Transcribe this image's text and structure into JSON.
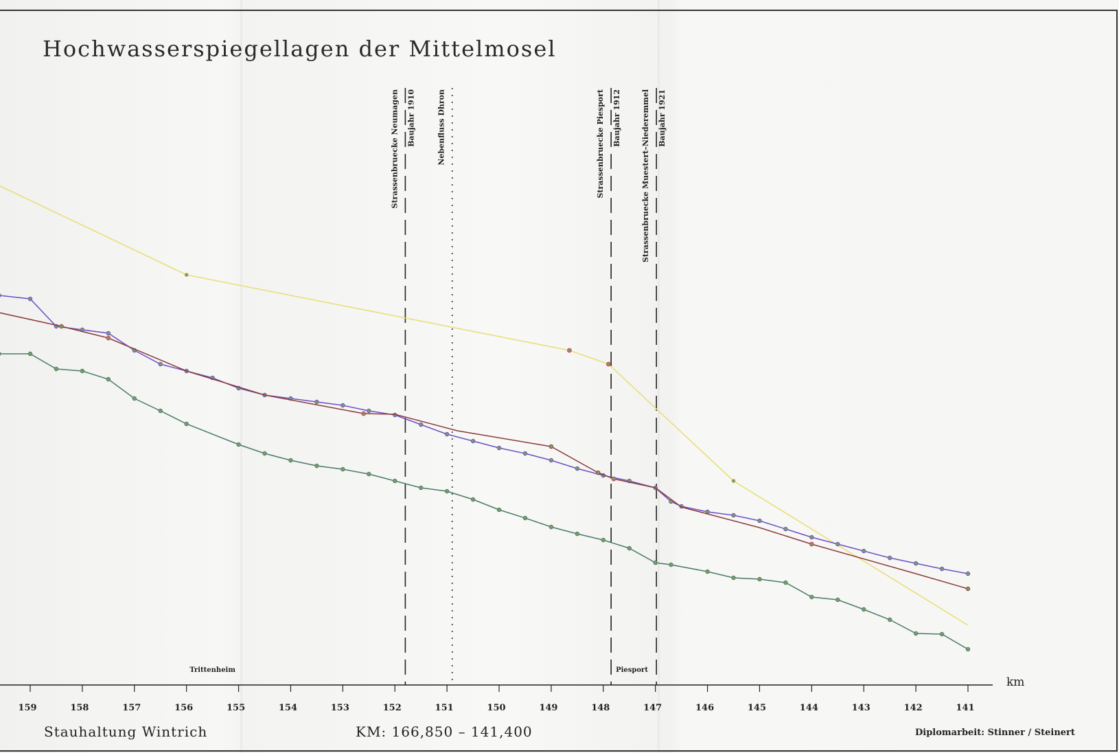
{
  "title": "Hochwasserspiegellagen der Mittelmosel",
  "footer": {
    "left": "Stauhaltung Wintrich",
    "center": "KM: 166,850 – 141,400",
    "right": "Diplomarbeit: Stinner / Steinert"
  },
  "chart_data": {
    "type": "line",
    "title": "Hochwasserspiegellagen der Mittelmosel",
    "xlabel": "km",
    "ylabel": "",
    "x_reversed": true,
    "xlim": [
      140.4,
      159.6
    ],
    "ylim": [
      0,
      100
    ],
    "y_ticks_shown": false,
    "x_ticks": [
      159,
      158,
      157,
      156,
      155,
      154,
      153,
      152,
      151,
      150,
      149,
      148,
      147,
      146,
      145,
      144,
      143,
      142,
      141
    ],
    "grid": false,
    "colors": {
      "yellow": "#e8df7a",
      "purple": "#6a4fc8",
      "brown": "#8b3a3a",
      "green": "#4a7a6a",
      "marker": "#7a9a6a",
      "marker_red": "#d44a6a"
    },
    "series": [
      {
        "color": "yellow",
        "points": [
          [
            159.6,
            81
          ],
          [
            156.0,
            68
          ],
          [
            148.65,
            57
          ],
          [
            147.9,
            55
          ],
          [
            145.5,
            38
          ],
          [
            141.0,
            17
          ]
        ],
        "markers": [
          [
            156.0,
            68
          ],
          [
            148.65,
            57
          ],
          [
            147.9,
            55
          ],
          [
            145.5,
            38
          ]
        ]
      },
      {
        "color": "purple",
        "points": [
          [
            159.6,
            65
          ],
          [
            159.0,
            64.5
          ],
          [
            158.5,
            60.5
          ],
          [
            158.0,
            60
          ],
          [
            157.5,
            59.5
          ],
          [
            157.0,
            57
          ],
          [
            156.5,
            55
          ],
          [
            156.0,
            54
          ],
          [
            155.5,
            53
          ],
          [
            155.0,
            51.5
          ],
          [
            154.5,
            50.5
          ],
          [
            154.0,
            50
          ],
          [
            153.5,
            49.5
          ],
          [
            153.0,
            49
          ],
          [
            152.5,
            48.2
          ],
          [
            152.0,
            47.6
          ],
          [
            151.5,
            46.2
          ],
          [
            151.0,
            44.8
          ],
          [
            150.5,
            43.8
          ],
          [
            150.0,
            42.8
          ],
          [
            149.5,
            42
          ],
          [
            149.0,
            41
          ],
          [
            148.5,
            39.8
          ],
          [
            148.0,
            38.8
          ],
          [
            147.5,
            38
          ],
          [
            147.0,
            37
          ],
          [
            146.7,
            35
          ],
          [
            146.5,
            34.3
          ],
          [
            146.0,
            33.5
          ],
          [
            145.5,
            33
          ],
          [
            145.0,
            32.2
          ],
          [
            144.5,
            31
          ],
          [
            144.0,
            29.8
          ],
          [
            143.5,
            28.8
          ],
          [
            143.0,
            27.8
          ],
          [
            142.5,
            26.8
          ],
          [
            142.0,
            26
          ],
          [
            141.5,
            25.2
          ],
          [
            141.0,
            24.5
          ]
        ],
        "markers": [
          [
            159.6,
            65
          ],
          [
            159.0,
            64.5
          ],
          [
            158.5,
            60.5
          ],
          [
            158.0,
            60
          ],
          [
            157.5,
            59.5
          ],
          [
            157.0,
            57
          ],
          [
            156.5,
            55
          ],
          [
            156.0,
            54
          ],
          [
            155.5,
            53
          ],
          [
            155.0,
            51.5
          ],
          [
            154.5,
            50.5
          ],
          [
            154.0,
            50
          ],
          [
            153.5,
            49.5
          ],
          [
            153.0,
            49
          ],
          [
            152.5,
            48.2
          ],
          [
            152.0,
            47.6
          ],
          [
            151.5,
            46.2
          ],
          [
            151.0,
            44.8
          ],
          [
            150.5,
            43.8
          ],
          [
            150.0,
            42.8
          ],
          [
            149.5,
            42
          ],
          [
            149.0,
            41
          ],
          [
            148.5,
            39.8
          ],
          [
            148.0,
            38.8
          ],
          [
            147.5,
            38
          ],
          [
            147.0,
            37
          ],
          [
            146.7,
            35
          ],
          [
            146.5,
            34.3
          ],
          [
            146.0,
            33.5
          ],
          [
            145.5,
            33
          ],
          [
            145.0,
            32.2
          ],
          [
            144.5,
            31
          ],
          [
            144.0,
            29.8
          ],
          [
            143.5,
            28.8
          ],
          [
            143.0,
            27.8
          ],
          [
            142.5,
            26.8
          ],
          [
            142.0,
            26
          ],
          [
            141.5,
            25.2
          ],
          [
            141.0,
            24.5
          ]
        ]
      },
      {
        "color": "brown",
        "points": [
          [
            159.6,
            62.5
          ],
          [
            158.4,
            60.5
          ],
          [
            157.5,
            58.8
          ],
          [
            156.0,
            54
          ],
          [
            154.5,
            50.5
          ],
          [
            152.6,
            47.8
          ],
          [
            152.0,
            47.7
          ],
          [
            150.8,
            45.3
          ],
          [
            149.0,
            43
          ],
          [
            148.1,
            39.2
          ],
          [
            147.8,
            38.3
          ],
          [
            147.0,
            37
          ],
          [
            146.5,
            34.2
          ],
          [
            145.0,
            31.2
          ],
          [
            144.0,
            28.8
          ],
          [
            142.0,
            24.5
          ],
          [
            141.0,
            22.3
          ]
        ],
        "markers": [
          [
            158.4,
            60.5
          ],
          [
            157.5,
            58.8
          ],
          [
            152.6,
            47.8
          ],
          [
            149.0,
            43
          ],
          [
            148.1,
            39.2
          ],
          [
            147.8,
            38.3
          ],
          [
            144.0,
            28.8
          ],
          [
            141.0,
            22.3
          ]
        ]
      },
      {
        "color": "green",
        "points": [
          [
            159.6,
            56.5
          ],
          [
            159.0,
            56.5
          ],
          [
            158.5,
            54.3
          ],
          [
            158.0,
            54
          ],
          [
            157.5,
            52.8
          ],
          [
            157.0,
            50
          ],
          [
            156.5,
            48.2
          ],
          [
            156.0,
            46.3
          ],
          [
            155.0,
            43.3
          ],
          [
            154.5,
            42
          ],
          [
            154.0,
            41
          ],
          [
            153.5,
            40.2
          ],
          [
            153.0,
            39.7
          ],
          [
            152.5,
            39
          ],
          [
            152.0,
            38
          ],
          [
            151.5,
            37
          ],
          [
            151.0,
            36.5
          ],
          [
            150.5,
            35.3
          ],
          [
            150.0,
            33.8
          ],
          [
            149.5,
            32.6
          ],
          [
            149.0,
            31.3
          ],
          [
            148.5,
            30.3
          ],
          [
            148.0,
            29.4
          ],
          [
            147.5,
            28.2
          ],
          [
            147.0,
            26.1
          ],
          [
            146.7,
            25.8
          ],
          [
            146.0,
            24.8
          ],
          [
            145.5,
            23.9
          ],
          [
            145.0,
            23.7
          ],
          [
            144.5,
            23.2
          ],
          [
            144.0,
            21.1
          ],
          [
            143.5,
            20.7
          ],
          [
            143.0,
            19.3
          ],
          [
            142.5,
            17.8
          ],
          [
            142.0,
            15.8
          ],
          [
            141.5,
            15.7
          ],
          [
            141.0,
            13.5
          ]
        ],
        "markers": [
          [
            159.6,
            56.5
          ],
          [
            159.0,
            56.5
          ],
          [
            158.5,
            54.3
          ],
          [
            158.0,
            54
          ],
          [
            157.5,
            52.8
          ],
          [
            157.0,
            50
          ],
          [
            156.5,
            48.2
          ],
          [
            156.0,
            46.3
          ],
          [
            155.0,
            43.3
          ],
          [
            154.5,
            42
          ],
          [
            154.0,
            41
          ],
          [
            153.5,
            40.2
          ],
          [
            153.0,
            39.7
          ],
          [
            152.5,
            39
          ],
          [
            152.0,
            38
          ],
          [
            151.5,
            37
          ],
          [
            151.0,
            36.5
          ],
          [
            150.5,
            35.3
          ],
          [
            150.0,
            33.8
          ],
          [
            149.5,
            32.6
          ],
          [
            149.0,
            31.3
          ],
          [
            148.5,
            30.3
          ],
          [
            148.0,
            29.4
          ],
          [
            147.5,
            28.2
          ],
          [
            147.0,
            26.1
          ],
          [
            146.7,
            25.8
          ],
          [
            146.0,
            24.8
          ],
          [
            145.5,
            23.9
          ],
          [
            145.0,
            23.7
          ],
          [
            144.5,
            23.2
          ],
          [
            144.0,
            21.1
          ],
          [
            143.5,
            20.7
          ],
          [
            143.0,
            19.3
          ],
          [
            142.5,
            17.8
          ],
          [
            142.0,
            15.8
          ],
          [
            141.5,
            15.7
          ],
          [
            141.0,
            13.5
          ]
        ]
      }
    ],
    "red_markers": [
      [
        157.5,
        58.8
      ],
      [
        152.6,
        47.8
      ],
      [
        148.65,
        57
      ],
      [
        147.9,
        55
      ],
      [
        147.8,
        38.3
      ],
      [
        144.0,
        28.8
      ]
    ],
    "structures": [
      {
        "x": 151.8,
        "style": "dashed",
        "labels": [
          "Strassenbruecke  Neumagen",
          "Baujahr 1910"
        ]
      },
      {
        "x": 150.9,
        "style": "dotted",
        "labels": [
          "Nebenfluss Dhron"
        ]
      },
      {
        "x": 147.85,
        "style": "dashed",
        "labels": [
          "Strassenbruecke Piesport",
          "Baujahr 1912"
        ]
      },
      {
        "x": 146.98,
        "style": "dashed",
        "labels": [
          "Strassenbruecke Muestert–Niederemmel",
          "Baujahr 1921"
        ]
      }
    ],
    "places": [
      {
        "x": 155.5,
        "label": "Trittenheim"
      },
      {
        "x": 147.45,
        "label": "Piesport"
      }
    ]
  }
}
